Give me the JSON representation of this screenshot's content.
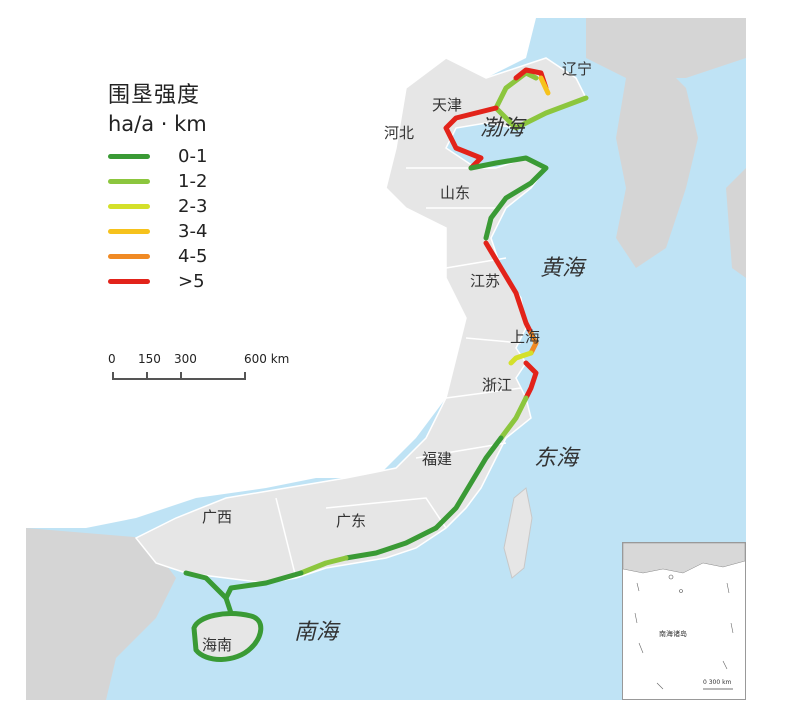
{
  "legend": {
    "title": "围垦强度",
    "unit": "ha/a · km",
    "items": [
      {
        "label": "0-1",
        "color": "#3a9a35"
      },
      {
        "label": "1-2",
        "color": "#8cc63e"
      },
      {
        "label": "2-3",
        "color": "#d4e02a"
      },
      {
        "label": "3-4",
        "color": "#f6c21c"
      },
      {
        "label": "4-5",
        "color": "#f08a24"
      },
      {
        "label": ">5",
        "color": "#e2231a"
      }
    ]
  },
  "scalebar": {
    "labels": [
      "0",
      "150",
      "300",
      "600 km"
    ]
  },
  "places": {
    "liaoning": "辽宁",
    "tianjin": "天津",
    "hebei": "河北",
    "shandong": "山东",
    "jiangsu": "江苏",
    "shanghai": "上海",
    "zhejiang": "浙江",
    "fujian": "福建",
    "guangdong": "广东",
    "guangxi": "广西",
    "hainan": "海南"
  },
  "seas": {
    "bohai": "渤海",
    "huanghai": "黄海",
    "donghai": "东海",
    "nanhai": "南海"
  },
  "inset": {
    "label": "南海诸岛",
    "scale": "0   300 km"
  },
  "colors": {
    "sea": "#bfe3f5",
    "province": "#e6e6e6",
    "inland": "#ffffff",
    "border": "#ffffff",
    "foreign_land": "#d5d5d5"
  }
}
